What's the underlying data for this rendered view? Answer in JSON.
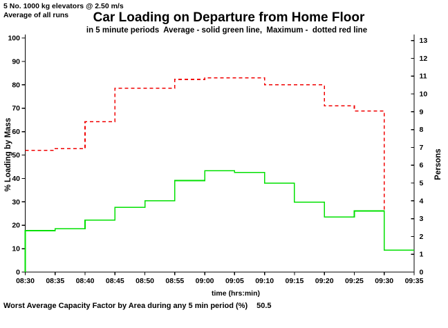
{
  "header": {
    "line1": "5 No. 1000 kg elevators @ 2.50 m/s",
    "line2": "Average of all runs"
  },
  "chart_data": {
    "type": "line",
    "subtype": "step",
    "title": "Car Loading on Departure from Home Floor",
    "subtitle": "in 5 minute periods  Average - solid green line,  Maximum -  dotted red line",
    "xlabel": "time (hrs:min)",
    "ylabel_left": "% Loading by Mass",
    "ylabel_right": "Persons",
    "x_categories": [
      "08:30",
      "08:35",
      "08:40",
      "08:45",
      "08:50",
      "08:55",
      "09:00",
      "09:05",
      "09:10",
      "09:15",
      "09:20",
      "09:25",
      "09:30",
      "09:35"
    ],
    "left_axis": {
      "min": 0,
      "max": 100,
      "step": 10
    },
    "right_axis": {
      "min": 0,
      "max": 13,
      "step": 1,
      "percent_per_person": 7.61
    },
    "grid": false,
    "legend_position": "in-subtitle",
    "series": [
      {
        "name": "Average",
        "style": "solid",
        "color": "#00E000",
        "starts_from_zero": true,
        "values": [
          17.7,
          18.5,
          22.2,
          27.6,
          30.4,
          39.1,
          43.3,
          42.6,
          38.0,
          29.9,
          23.5,
          26.1,
          9.4
        ]
      },
      {
        "name": "Maximum",
        "style": "dashed",
        "color": "#F00000",
        "values": [
          52.0,
          52.7,
          64.2,
          78.5,
          78.5,
          82.3,
          83.0,
          83.0,
          80.0,
          80.0,
          71.0,
          68.8
        ],
        "end_drop_to": 26.7
      }
    ]
  },
  "footer": {
    "note": "Worst Average Capacity Factor by Area during any 5 min period (%)",
    "value": "50.5"
  },
  "colors": {
    "axis": "#000000",
    "average_line": "#00E000",
    "maximum_line": "#F00000",
    "background": "#FFFFFF"
  }
}
